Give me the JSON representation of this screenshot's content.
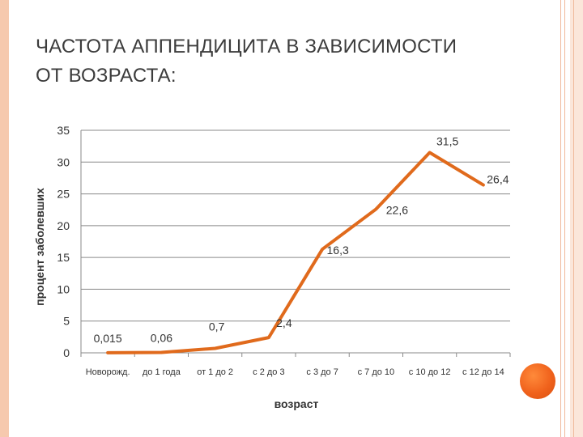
{
  "slide": {
    "title_line1": "ЧАСТОТА АППЕНДИЦИТА В ЗАВИСИМОСТИ",
    "title_line2": "ОТ ВОЗРАСТА:"
  },
  "colors": {
    "line": "#e06a1c",
    "accent_dot": "#f0621c",
    "grid": "#8a8a8a",
    "frame": "#f6c9ae"
  },
  "chart_data": {
    "type": "line",
    "xlabel": "возраст",
    "ylabel": "процент заболевших",
    "ylim": [
      0,
      35
    ],
    "yticks": [
      0,
      5,
      10,
      15,
      20,
      25,
      30,
      35
    ],
    "grid": true,
    "categories": [
      "Новорожд.",
      "до 1 года",
      "от 1 до 2",
      "с 2 до 3",
      "с 3 до 7",
      "с 7 до 10",
      "с 10 до 12",
      "с 12 до 14"
    ],
    "series": [
      {
        "values": [
          0.015,
          0.06,
          0.7,
          2.4,
          16.3,
          22.6,
          31.5,
          26.4
        ],
        "labels": [
          "0,015",
          "0,06",
          "0,7",
          "2,4",
          "16,3",
          "22,6",
          "31,5",
          "26,4"
        ]
      }
    ]
  }
}
